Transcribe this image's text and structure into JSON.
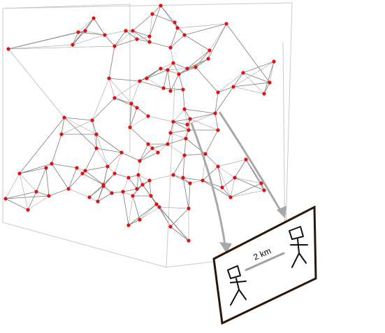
{
  "figure": {
    "caption_text": "2 km",
    "colors": {
      "node": "#dd1111",
      "edge": "#7a7a7a",
      "box": "#c9c9c9",
      "arrow": "#a8a8a8",
      "card_border": "#2b1608"
    },
    "icons": [
      "stick-figure-left",
      "stick-figure-right",
      "pointer-arrow-left",
      "pointer-arrow-right",
      "distance-bar"
    ]
  }
}
